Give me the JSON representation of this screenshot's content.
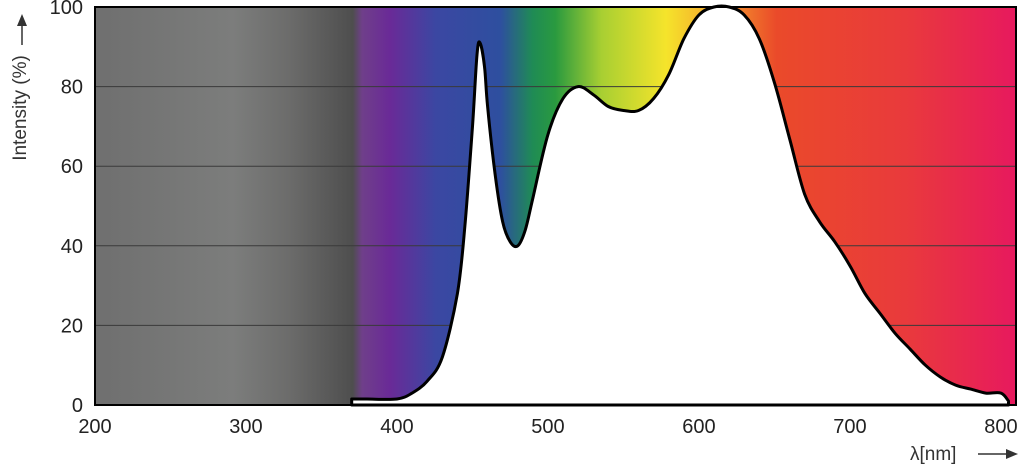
{
  "chart_data": {
    "type": "area",
    "title": "",
    "xlabel": "λ[nm]",
    "ylabel": "Intensity (%)",
    "xlim": [
      200,
      810
    ],
    "ylim": [
      0,
      100
    ],
    "xticks": [
      "200",
      "300",
      "400",
      "500",
      "600",
      "700",
      "800"
    ],
    "yticks": [
      "0",
      "20",
      "40",
      "60",
      "80",
      "100"
    ],
    "grid": true,
    "background": "visible spectrum gradient",
    "series": [
      {
        "x": [
          370,
          380,
          400,
          410,
          420,
          430,
          440,
          445,
          450,
          453,
          455,
          458,
          460,
          465,
          470,
          475,
          480,
          485,
          490,
          500,
          510,
          520,
          530,
          540,
          550,
          560,
          570,
          580,
          590,
          600,
          610,
          620,
          630,
          640,
          650,
          660,
          670,
          680,
          690,
          700,
          710,
          720,
          730,
          740,
          750,
          760,
          770,
          780,
          790,
          800,
          805
        ],
        "y": [
          1.5,
          1.5,
          1.5,
          3,
          6,
          12,
          28,
          45,
          70,
          88,
          91,
          85,
          75,
          58,
          46,
          41,
          40,
          44,
          52,
          68,
          77,
          80,
          78,
          75,
          74,
          74,
          77,
          83,
          92,
          98,
          100,
          100,
          98,
          92,
          81,
          67,
          53,
          46,
          41,
          35,
          28,
          23,
          18,
          14,
          10,
          7,
          5,
          4,
          3,
          3,
          1
        ]
      }
    ]
  }
}
